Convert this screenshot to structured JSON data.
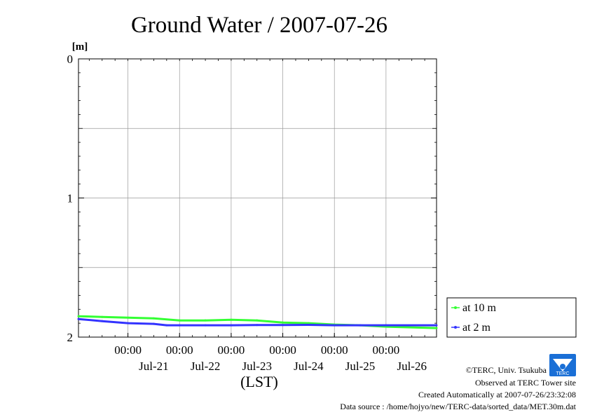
{
  "chart_data": {
    "type": "line",
    "title": "Ground Water / 2007-07-26",
    "y_unit_label": "[m]",
    "xlabel": "(LST)",
    "y_inverted": true,
    "ylim": [
      0,
      2
    ],
    "y_ticks": [
      "0",
      "1",
      "2"
    ],
    "x_range_hours_note": "",
    "x_ticks": [
      {
        "time": "00:00",
        "date": "Jul-21"
      },
      {
        "time": "00:00",
        "date": "Jul-22"
      },
      {
        "time": "00:00",
        "date": "Jul-23"
      },
      {
        "time": "00:00",
        "date": "Jul-24"
      },
      {
        "time": "00:00",
        "date": "Jul-25"
      },
      {
        "time": "00:00",
        "date": "Jul-26"
      }
    ],
    "xlim": [
      "2007-07-20 01:00",
      "2007-07-26 23:30"
    ],
    "grid": true,
    "legend_position": "right-bottom",
    "series": [
      {
        "name": "at 10 m",
        "color": "#33ff33",
        "points": [
          [
            "2007-07-20 01:00",
            1.85
          ],
          [
            "2007-07-20 12:00",
            1.855
          ],
          [
            "2007-07-21 00:00",
            1.86
          ],
          [
            "2007-07-21 12:00",
            1.865
          ],
          [
            "2007-07-22 00:00",
            1.88
          ],
          [
            "2007-07-22 12:00",
            1.88
          ],
          [
            "2007-07-23 00:00",
            1.875
          ],
          [
            "2007-07-23 12:00",
            1.88
          ],
          [
            "2007-07-24 00:00",
            1.895
          ],
          [
            "2007-07-24 12:00",
            1.9
          ],
          [
            "2007-07-25 00:00",
            1.91
          ],
          [
            "2007-07-25 12:00",
            1.915
          ],
          [
            "2007-07-26 00:00",
            1.925
          ],
          [
            "2007-07-26 23:30",
            1.935
          ]
        ]
      },
      {
        "name": "at 2 m",
        "color": "#3333ff",
        "points": [
          [
            "2007-07-20 01:00",
            1.87
          ],
          [
            "2007-07-20 12:00",
            1.885
          ],
          [
            "2007-07-21 00:00",
            1.9
          ],
          [
            "2007-07-21 12:00",
            1.905
          ],
          [
            "2007-07-21 18:00",
            1.915
          ],
          [
            "2007-07-22 00:00",
            1.915
          ],
          [
            "2007-07-22 12:00",
            1.915
          ],
          [
            "2007-07-23 00:00",
            1.915
          ],
          [
            "2007-07-23 12:00",
            1.913
          ],
          [
            "2007-07-24 00:00",
            1.913
          ],
          [
            "2007-07-24 12:00",
            1.912
          ],
          [
            "2007-07-25 00:00",
            1.915
          ],
          [
            "2007-07-25 12:00",
            1.915
          ],
          [
            "2007-07-26 00:00",
            1.915
          ],
          [
            "2007-07-26 23:30",
            1.915
          ]
        ]
      }
    ]
  },
  "footer": {
    "copyright": "©TERC, Univ. Tsukuba",
    "observed": "Observed at TERC Tower site",
    "created": "Created Automatically at 2007-07-26/23:32:08",
    "source": "Data source : /home/hojyo/new/TERC-data/sorted_data/MET.30m.dat"
  },
  "logo": {
    "text": "TERC",
    "color": "#1a6fd6"
  }
}
